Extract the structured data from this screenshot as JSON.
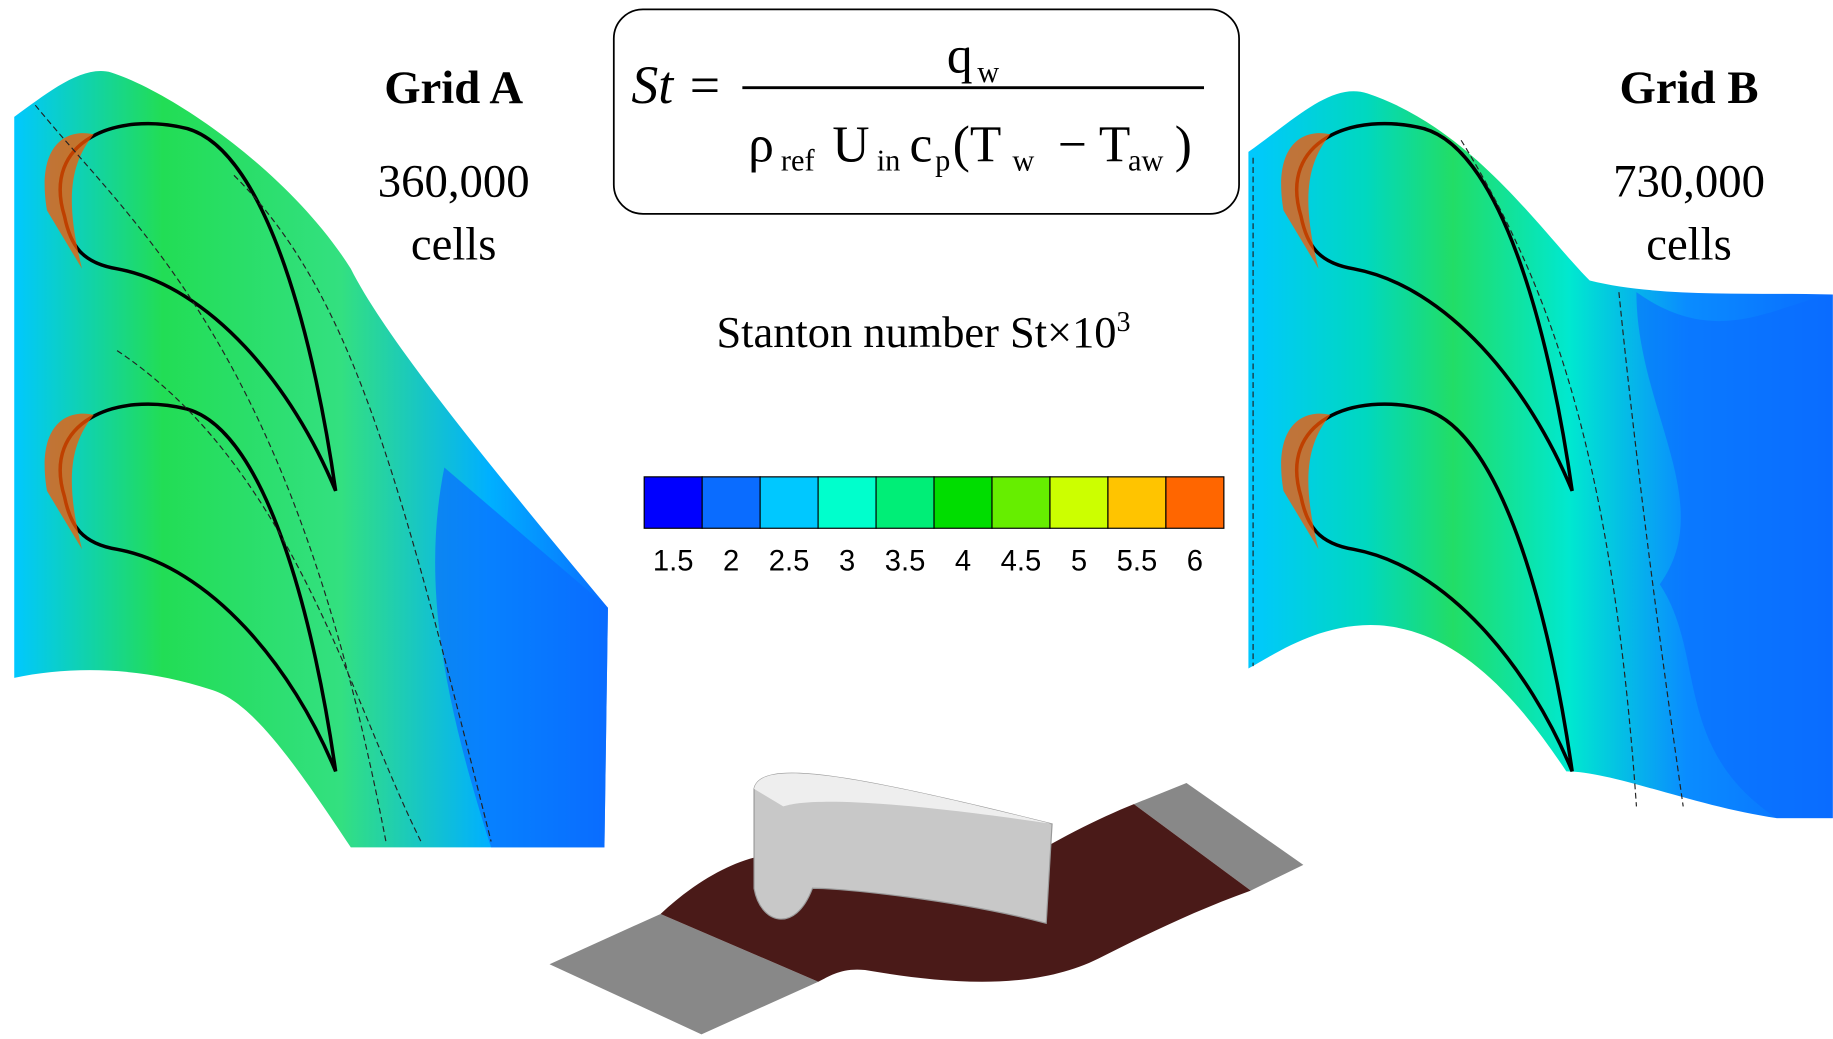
{
  "grid_a": {
    "title": "Grid A",
    "cells": "360,000",
    "unit": "cells"
  },
  "grid_b": {
    "title": "Grid B",
    "cells": "730,000",
    "unit": "cells"
  },
  "formula": {
    "lhs": "St",
    "equals": "=",
    "numerator": {
      "base": "q",
      "sub": "w"
    },
    "denominator": [
      {
        "base": "ρ",
        "sub": "ref"
      },
      {
        "base": "U",
        "sub": "in"
      },
      {
        "base": "c",
        "sub": "p"
      },
      {
        "base": "(T",
        "sub": "w"
      },
      {
        "base": "− T",
        "sub": "aw"
      },
      {
        "base": ")"
      }
    ]
  },
  "colorbar": {
    "title": "Stanton number St×10",
    "title_superscript": "3",
    "ticks": [
      1.5,
      2,
      2.5,
      3,
      3.5,
      4,
      4.5,
      5,
      5.5,
      6
    ],
    "colors": [
      "#0000ff",
      "#0a6cff",
      "#00c8ff",
      "#00ffcc",
      "#00ee77",
      "#00dd00",
      "#66ee00",
      "#ccff00",
      "#ffc400",
      "#ff6600"
    ]
  }
}
